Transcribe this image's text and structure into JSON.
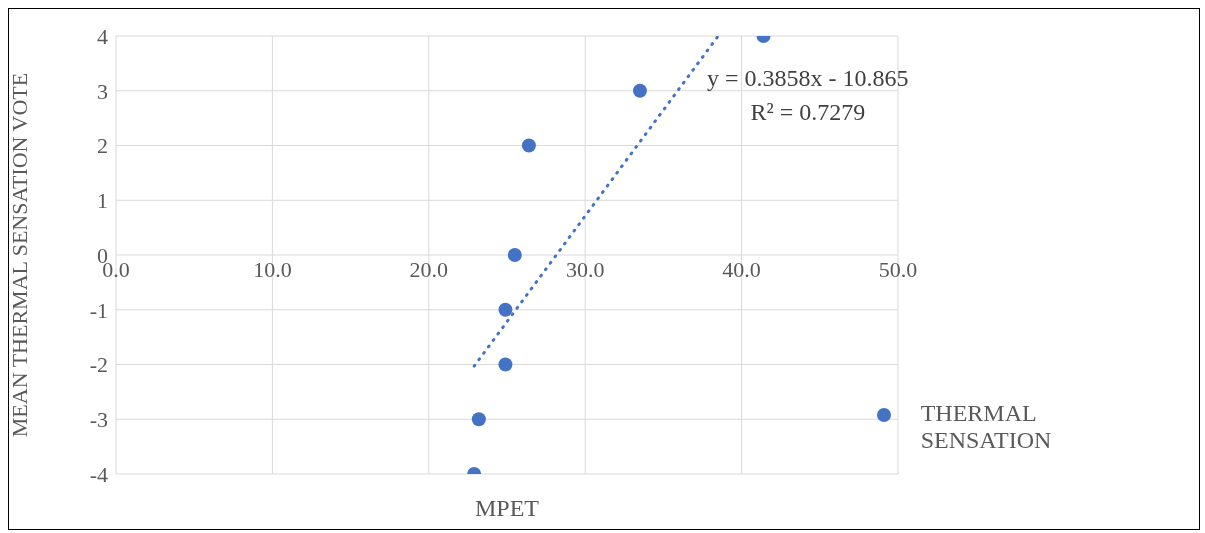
{
  "chart_data": {
    "type": "scatter",
    "xlabel": "MPET",
    "ylabel": "MEAN THERMAL SENSATION VOTE",
    "xlim": [
      0,
      50
    ],
    "xticks": [
      {
        "value": 0,
        "label": "0.0"
      },
      {
        "value": 10,
        "label": "10.0"
      },
      {
        "value": 20,
        "label": "20.0"
      },
      {
        "value": 30,
        "label": "30.0"
      },
      {
        "value": 40,
        "label": "40.0"
      },
      {
        "value": 50,
        "label": "50.0"
      }
    ],
    "ylim": [
      -4,
      4
    ],
    "yticks": [
      -4,
      -3,
      -2,
      -1,
      0,
      1,
      2,
      3,
      4
    ],
    "grid": true,
    "legend": "right",
    "marker": "circle",
    "annotations": [
      "y = 0.3858x - 10.865",
      "R² = 0.7279"
    ],
    "series": [
      {
        "name": "THERMAL SENSATION",
        "color": "#4472c4",
        "x": [
          22.9,
          23.2,
          24.9,
          24.9,
          25.5,
          26.4,
          33.5,
          41.4
        ],
        "values": [
          -4,
          -3,
          -2,
          -1,
          0,
          2,
          3,
          4
        ]
      },
      {
        "type": "line",
        "color": "#4472c4",
        "line_style": "dotted",
        "marker": "none",
        "x": [
          22.9,
          38.5
        ],
        "values": [
          -2.03,
          4.0
        ]
      }
    ]
  }
}
